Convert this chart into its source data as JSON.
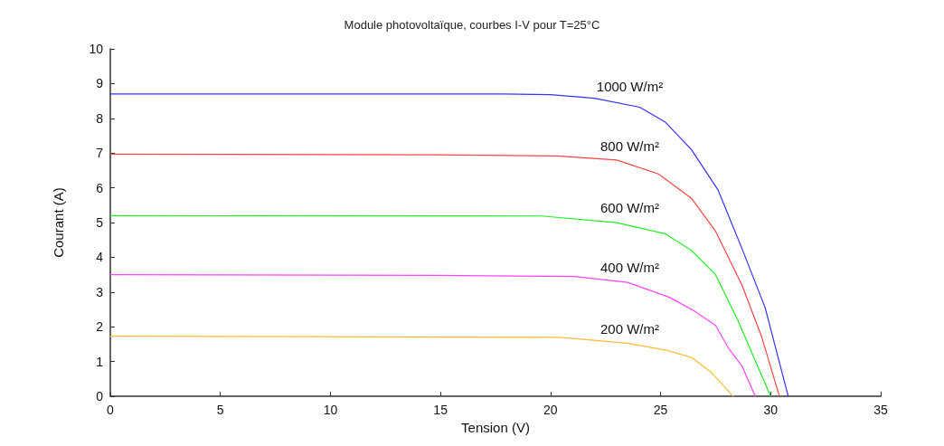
{
  "chart_data": {
    "type": "line",
    "title": "Module photovoltaïque, courbes I-V pour T=25°C",
    "xlabel": "Tension (V)",
    "ylabel": "Courant (A)",
    "xlim": [
      0,
      35
    ],
    "xticks": [
      0,
      5,
      10,
      15,
      20,
      25,
      30,
      35
    ],
    "ylim": [
      0,
      10
    ],
    "yticks": [
      0,
      1,
      2,
      3,
      4,
      5,
      6,
      7,
      8,
      9,
      10
    ],
    "grid": false,
    "legend": false,
    "marker": "none",
    "line_style": "solid",
    "series": [
      {
        "name": "1000 W/m²",
        "color": "#3333ff",
        "x": [
          0,
          17.8,
          20,
          22,
          24.05,
          25.2,
          26.4,
          27.6,
          28.7,
          29.75,
          30.8
        ],
        "values": [
          8.7,
          8.7,
          8.68,
          8.58,
          8.32,
          7.9,
          7.1,
          5.95,
          4.25,
          2.55,
          0
        ]
      },
      {
        "name": "800 W/m²",
        "color": "#ff4444",
        "x": [
          0,
          15,
          20.3,
          23,
          24.9,
          26.4,
          27.5,
          28.7,
          29.6,
          30.4
        ],
        "values": [
          6.97,
          6.95,
          6.92,
          6.8,
          6.4,
          5.7,
          4.75,
          3.2,
          1.7,
          0
        ]
      },
      {
        "name": "600 W/m²",
        "color": "#22ee22",
        "x": [
          0,
          19.6,
          23,
          25.2,
          26.4,
          27.5,
          28.5,
          29.35,
          30
        ],
        "values": [
          5.2,
          5.19,
          5.0,
          4.68,
          4.2,
          3.5,
          2.2,
          0.95,
          0
        ]
      },
      {
        "name": "400 W/m²",
        "color": "#ff44ff",
        "x": [
          0,
          15,
          21.1,
          23.5,
          25.4,
          26.5,
          27.5,
          28.1,
          28.7,
          29.3
        ],
        "values": [
          3.5,
          3.48,
          3.45,
          3.28,
          2.85,
          2.47,
          2.04,
          1.37,
          0.87,
          0
        ]
      },
      {
        "name": "200 W/m²",
        "color": "#ffbb33",
        "x": [
          0,
          20.4,
          23.5,
          25.3,
          26.4,
          27.3,
          28.3
        ],
        "values": [
          1.73,
          1.7,
          1.53,
          1.32,
          1.12,
          0.69,
          0
        ]
      }
    ]
  }
}
